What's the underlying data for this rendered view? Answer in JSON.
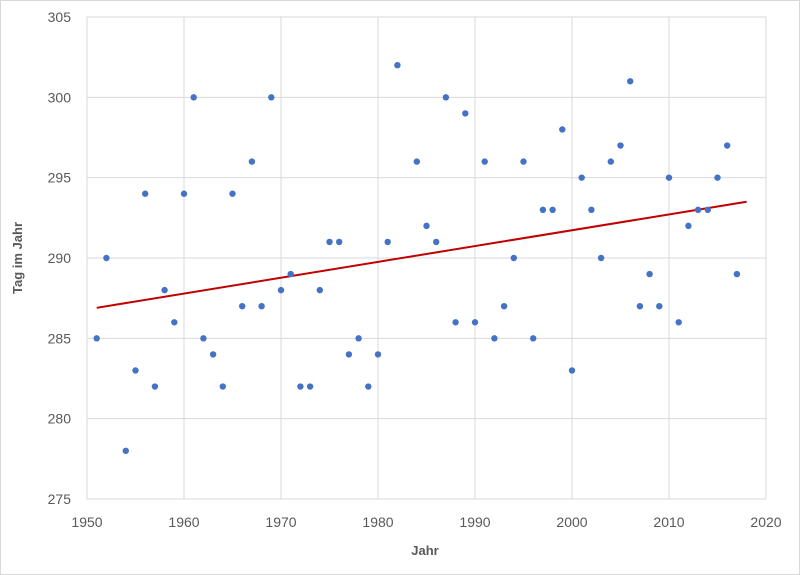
{
  "chart_data": {
    "type": "scatter",
    "title": "",
    "xlabel": "Jahr",
    "ylabel": "Tag im Jahr",
    "xlim": [
      1950,
      2020
    ],
    "ylim": [
      275,
      305
    ],
    "x_ticks": [
      "1950",
      "1960",
      "1970",
      "1980",
      "1990",
      "2000",
      "2010",
      "2020"
    ],
    "y_ticks": [
      "275",
      "280",
      "285",
      "290",
      "295",
      "300",
      "305"
    ],
    "grid": true,
    "legend": "none",
    "colors": {
      "points": "#4472C4",
      "trendline": "#C00000"
    },
    "series": [
      {
        "x": [
          1951,
          1952,
          1954,
          1955,
          1956,
          1957,
          1958,
          1959,
          1960,
          1961,
          1962,
          1963,
          1964,
          1965,
          1966,
          1967,
          1968,
          1969,
          1970,
          1971,
          1972,
          1973,
          1974,
          1975,
          1976,
          1977,
          1978,
          1979,
          1980,
          1981,
          1982,
          1984,
          1985,
          1986,
          1987,
          1988,
          1989,
          1990,
          1991,
          1992,
          1993,
          1994,
          1995,
          1996,
          1997,
          1998,
          1999,
          2000,
          2001,
          2002,
          2003,
          2004,
          2005,
          2006,
          2007,
          2008,
          2009,
          2010,
          2011,
          2012,
          2013,
          2014,
          2015,
          2016,
          2017
        ],
        "y": [
          285,
          290,
          278,
          283,
          294,
          282,
          288,
          286,
          294,
          300,
          285,
          284,
          282,
          294,
          287,
          296,
          287,
          300,
          288,
          289,
          282,
          282,
          288,
          291,
          291,
          284,
          285,
          282,
          284,
          291,
          302,
          296,
          292,
          291,
          300,
          286,
          299,
          286,
          296,
          285,
          287,
          290,
          296,
          285,
          293,
          293,
          298,
          283,
          295,
          293,
          290,
          296,
          297,
          301,
          287,
          289,
          287,
          295,
          286,
          292,
          293,
          293,
          295,
          297,
          289
        ]
      }
    ],
    "trendline": {
      "type": "linear",
      "x": [
        1951,
        2018
      ],
      "y": [
        286.9,
        293.5
      ]
    }
  }
}
